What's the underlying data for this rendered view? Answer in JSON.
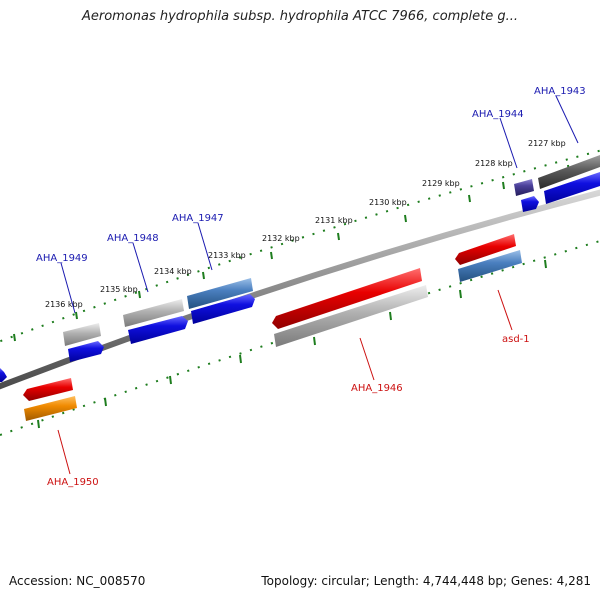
{
  "title": "Aeromonas hydrophila subsp. hydrophila ATCC 7966, complete g...",
  "footer": {
    "accession": "Accession: NC_008570",
    "summary": "Topology: circular; Length: 4,744,448 bp; Genes: 4,281"
  },
  "colors": {
    "backbone": "#8a8a8a",
    "tick": "#1e7d1e",
    "label_forward": "#1a1ab0",
    "label_reverse": "#cc1111",
    "blue": "#1010e0",
    "steelblue": "#4a7fbf",
    "gray": "#a8a8a8",
    "darkgray": "#5a5a5a",
    "red": "#e00000",
    "orange": "#f08a00",
    "purple": "#4a3f99"
  },
  "kbp_labels": [
    "2127 kbp",
    "2128 kbp",
    "2129 kbp",
    "2130 kbp",
    "2131 kbp",
    "2132 kbp",
    "2133 kbp",
    "2134 kbp",
    "2135 kbp",
    "2136 kbp"
  ],
  "gene_labels": [
    "AHA_1943",
    "AHA_1944",
    "AHA_1947",
    "AHA_1948",
    "AHA_1949",
    "AHA_1946",
    "asd-1",
    "AHA_1950"
  ]
}
